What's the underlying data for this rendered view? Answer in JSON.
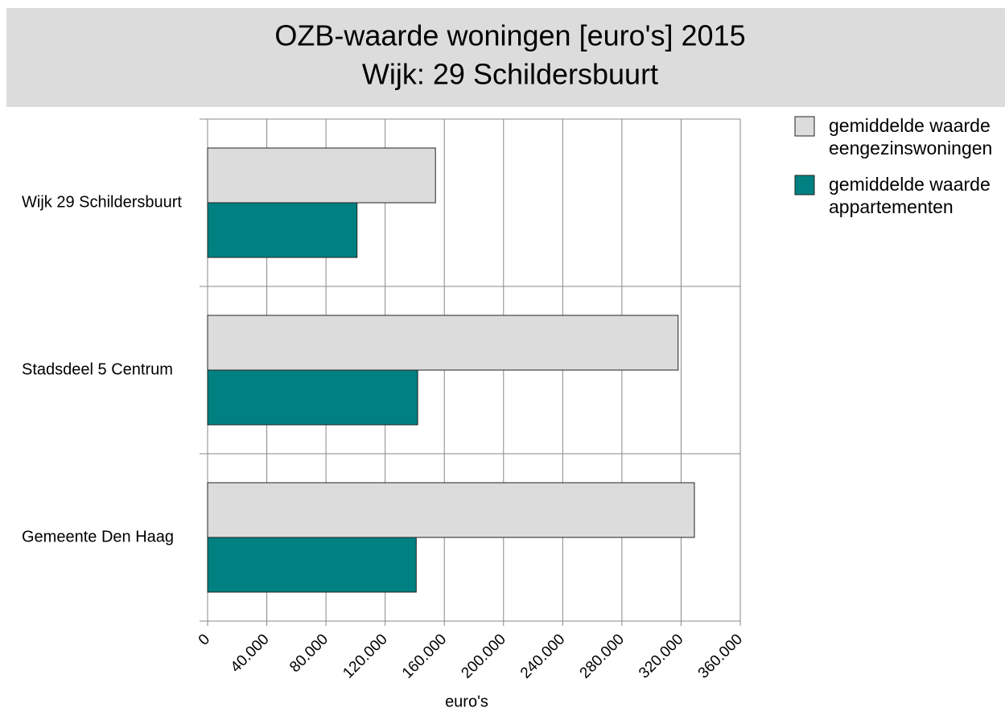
{
  "chart_data": {
    "type": "hbar",
    "title": "OZB-waarde woningen [euro's] 2015",
    "subtitle": "Wijk: 29 Schildersbuurt",
    "x_label": "euro's",
    "categories": [
      "Wijk 29 Schildersbuurt",
      "Stadsdeel 5 Centrum",
      "Gemeente Den Haag"
    ],
    "series": [
      {
        "name": "gemiddelde waarde eengezinswoningen",
        "color": "#dcdcdc",
        "values": [
          154000,
          318000,
          329000
        ]
      },
      {
        "name": "gemiddelde waarde appartementen",
        "color": "#008080",
        "values": [
          101000,
          142000,
          141000
        ]
      }
    ],
    "xlim": [
      0,
      360000
    ],
    "xticks": [
      0,
      {
        "value": 40000,
        "label": "40.000"
      },
      {
        "value": 80000,
        "label": "80.000"
      },
      {
        "value": 120000,
        "label": "120.000"
      },
      {
        "value": 160000,
        "label": "160.000"
      },
      {
        "value": 200000,
        "label": "200.000"
      },
      {
        "value": 240000,
        "label": "240.000"
      },
      {
        "value": 280000,
        "label": "280.000"
      },
      {
        "value": 320000,
        "label": "320.000"
      },
      {
        "value": 360000,
        "label": "360.000"
      }
    ],
    "grid": true,
    "legend": "right"
  }
}
